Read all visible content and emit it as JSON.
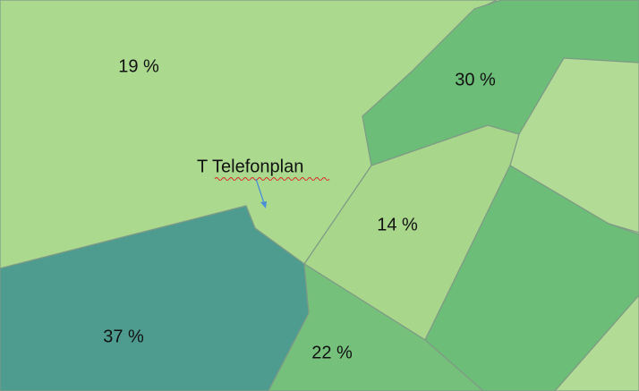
{
  "regions": [
    {
      "label": "19 %"
    },
    {
      "label": "30 %"
    },
    {
      "label": "14 %"
    },
    {
      "label": "37 %"
    },
    {
      "label": "22 %"
    }
  ],
  "station": {
    "label": "T Telefonplan"
  }
}
